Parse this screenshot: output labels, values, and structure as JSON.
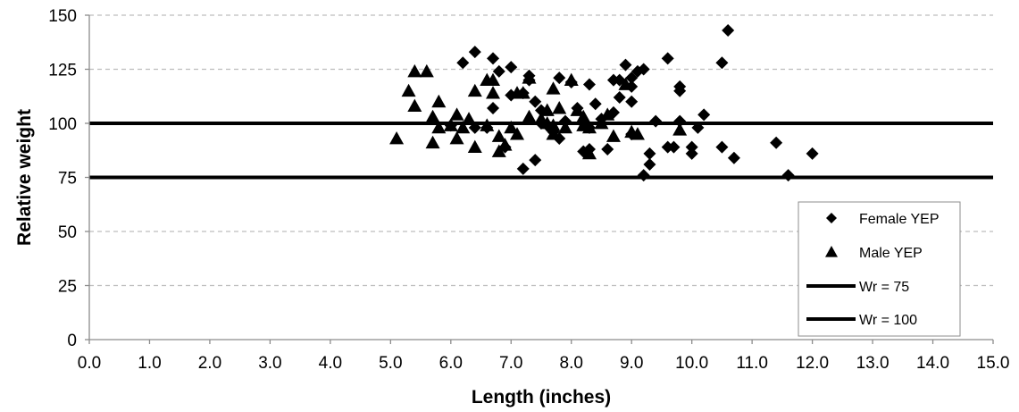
{
  "chart_data": {
    "type": "scatter",
    "title": "",
    "xlabel": "Length (inches)",
    "ylabel": "Relative weight",
    "xlim": [
      0,
      15
    ],
    "ylim": [
      0,
      150
    ],
    "x_ticks": [
      "0.0",
      "1.0",
      "2.0",
      "3.0",
      "4.0",
      "5.0",
      "6.0",
      "7.0",
      "8.0",
      "9.0",
      "10.0",
      "11.0",
      "12.0",
      "13.0",
      "14.0",
      "15.0"
    ],
    "y_ticks": [
      "0",
      "25",
      "50",
      "75",
      "100",
      "125",
      "150"
    ],
    "grid": "horizontal dashed",
    "legend_position": "bottom-right",
    "series": [
      {
        "name": "Female YEP",
        "marker": "diamond",
        "color": "#000000",
        "points": [
          [
            6.0,
            99
          ],
          [
            6.2,
            128
          ],
          [
            6.4,
            133
          ],
          [
            6.4,
            98
          ],
          [
            6.6,
            98
          ],
          [
            6.7,
            130
          ],
          [
            6.7,
            107
          ],
          [
            6.8,
            124
          ],
          [
            6.9,
            89
          ],
          [
            7.0,
            113
          ],
          [
            7.0,
            126
          ],
          [
            7.2,
            79
          ],
          [
            7.2,
            114
          ],
          [
            7.3,
            120
          ],
          [
            7.3,
            122
          ],
          [
            7.4,
            83
          ],
          [
            7.4,
            110
          ],
          [
            7.5,
            100
          ],
          [
            7.5,
            106
          ],
          [
            7.6,
            99
          ],
          [
            7.7,
            96
          ],
          [
            7.8,
            121
          ],
          [
            7.8,
            93
          ],
          [
            7.9,
            101
          ],
          [
            8.0,
            119
          ],
          [
            8.1,
            107
          ],
          [
            8.2,
            87
          ],
          [
            8.2,
            100
          ],
          [
            8.3,
            88
          ],
          [
            8.3,
            98
          ],
          [
            8.3,
            118
          ],
          [
            8.4,
            109
          ],
          [
            8.5,
            102
          ],
          [
            8.6,
            88
          ],
          [
            8.7,
            105
          ],
          [
            8.7,
            120
          ],
          [
            8.8,
            112
          ],
          [
            8.8,
            120
          ],
          [
            8.9,
            127
          ],
          [
            9.0,
            95
          ],
          [
            9.0,
            110
          ],
          [
            9.0,
            117
          ],
          [
            9.0,
            121
          ],
          [
            9.1,
            124
          ],
          [
            9.2,
            76
          ],
          [
            9.2,
            125
          ],
          [
            9.3,
            81
          ],
          [
            9.3,
            86
          ],
          [
            9.4,
            101
          ],
          [
            9.6,
            89
          ],
          [
            9.6,
            130
          ],
          [
            9.7,
            89
          ],
          [
            9.8,
            101
          ],
          [
            9.8,
            115
          ],
          [
            9.8,
            117
          ],
          [
            10.0,
            86
          ],
          [
            10.0,
            89
          ],
          [
            10.1,
            98
          ],
          [
            10.2,
            104
          ],
          [
            10.5,
            89
          ],
          [
            10.5,
            128
          ],
          [
            10.6,
            143
          ],
          [
            10.7,
            84
          ],
          [
            11.4,
            91
          ],
          [
            11.6,
            76
          ],
          [
            12.0,
            86
          ]
        ]
      },
      {
        "name": "Male YEP",
        "marker": "triangle",
        "color": "#000000",
        "points": [
          [
            5.1,
            93
          ],
          [
            5.3,
            115
          ],
          [
            5.4,
            108
          ],
          [
            5.4,
            124
          ],
          [
            5.6,
            124
          ],
          [
            5.7,
            91
          ],
          [
            5.7,
            103
          ],
          [
            5.8,
            98
          ],
          [
            5.8,
            110
          ],
          [
            6.0,
            99
          ],
          [
            6.1,
            93
          ],
          [
            6.1,
            104
          ],
          [
            6.2,
            98
          ],
          [
            6.3,
            102
          ],
          [
            6.4,
            89
          ],
          [
            6.4,
            115
          ],
          [
            6.6,
            99
          ],
          [
            6.6,
            120
          ],
          [
            6.7,
            114
          ],
          [
            6.7,
            120
          ],
          [
            6.8,
            87
          ],
          [
            6.8,
            94
          ],
          [
            6.9,
            90
          ],
          [
            7.0,
            98
          ],
          [
            7.1,
            95
          ],
          [
            7.1,
            114
          ],
          [
            7.2,
            114
          ],
          [
            7.3,
            103
          ],
          [
            7.3,
            121
          ],
          [
            7.5,
            102
          ],
          [
            7.6,
            100
          ],
          [
            7.6,
            106
          ],
          [
            7.7,
            95
          ],
          [
            7.7,
            99
          ],
          [
            7.7,
            116
          ],
          [
            7.8,
            107
          ],
          [
            7.9,
            98
          ],
          [
            8.0,
            120
          ],
          [
            8.1,
            106
          ],
          [
            8.2,
            99
          ],
          [
            8.2,
            103
          ],
          [
            8.3,
            86
          ],
          [
            8.3,
            98
          ],
          [
            8.5,
            100
          ],
          [
            8.6,
            104
          ],
          [
            8.7,
            94
          ],
          [
            8.9,
            118
          ],
          [
            9.0,
            96
          ],
          [
            9.1,
            95
          ],
          [
            9.8,
            97
          ]
        ]
      },
      {
        "name": "Wr = 75",
        "type": "hline",
        "value": 75,
        "color": "#000000"
      },
      {
        "name": "Wr = 100",
        "type": "hline",
        "value": 100,
        "color": "#000000"
      }
    ]
  }
}
